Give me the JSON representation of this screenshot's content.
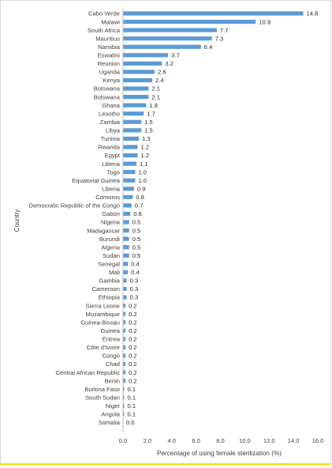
{
  "chart_data": {
    "type": "bar",
    "orientation": "horizontal",
    "title": "",
    "xlabel": "Percentage of using female sterilization (%)",
    "ylabel": "Country",
    "xlim": [
      0,
      16
    ],
    "xticks": [
      "0.0",
      "2.0",
      "4.0",
      "6.0",
      "8.0",
      "10.0",
      "12.0",
      "14.0",
      "16.0"
    ],
    "bar_color": "#5b9bd5",
    "grid": false,
    "legend": "none",
    "categories": [
      "Cabo Verde",
      "Malawi",
      "South Africa",
      "Mauritius",
      "Namibia",
      "Eswatini",
      "Reunion",
      "Uganda",
      "Kenya",
      "Botswana",
      "Botswana",
      "Ghana",
      "Lesotho",
      "Zambia",
      "Libya",
      "Tunisia",
      "Rwanda",
      "Egypt",
      "Liberia",
      "Togo",
      "Equatorial Guinea",
      "Liberia",
      "Comoros",
      "Democratic Republic of the Congo",
      "Gabon",
      "Nigeria",
      "Madagascar",
      "Burundi",
      "Algeria",
      "Sudan",
      "Senegal",
      "Mali",
      "Gambia",
      "Cameroon",
      "Ethiopia",
      "Sierra Leone",
      "Mozambique",
      "Guinea-Bissau",
      "Guinea",
      "Eritrea",
      "Côte d'Ivoire",
      "Congo",
      "Chad",
      "Central African Republic",
      "Benin",
      "Burkina Faso",
      "South Sudan",
      "Niger",
      "Angola",
      "Somalia"
    ],
    "values": [
      14.8,
      10.9,
      7.7,
      7.3,
      6.4,
      3.7,
      3.2,
      2.6,
      2.4,
      2.1,
      2.1,
      1.9,
      1.7,
      1.5,
      1.5,
      1.3,
      1.2,
      1.2,
      1.1,
      1.0,
      1.0,
      0.9,
      0.8,
      0.7,
      0.6,
      0.5,
      0.5,
      0.5,
      0.5,
      0.5,
      0.4,
      0.4,
      0.3,
      0.3,
      0.3,
      0.2,
      0.2,
      0.2,
      0.2,
      0.2,
      0.2,
      0.2,
      0.2,
      0.2,
      0.2,
      0.1,
      0.1,
      0.1,
      0.1,
      0.0
    ],
    "value_labels": [
      "14.8",
      "10.9",
      "7.7",
      "7.3",
      "6.4",
      "3.7",
      "3.2",
      "2.6",
      "2.4",
      "2.1",
      "2.1",
      "1.9",
      "1.7",
      "1.5",
      "1.5",
      "1.3",
      "1.2",
      "1.2",
      "1.1",
      "1.0",
      "1.0",
      "0.9",
      "0.8",
      "0.7",
      "0.6",
      "0.5",
      "0.5",
      "0.5",
      "0.5",
      "0.5",
      "0.4",
      "0.4",
      "0.3",
      "0.3",
      "0.3",
      "0.2",
      "0.2",
      "0.2",
      "0.2",
      "0.2",
      "0.2",
      "0.2",
      "0.2",
      "0.2",
      "0.2",
      "0.1",
      "0.1",
      "0.1",
      "0.1",
      "0.0"
    ]
  }
}
